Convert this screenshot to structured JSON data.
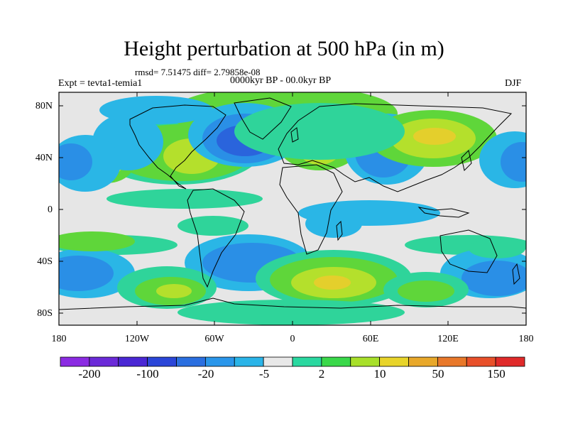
{
  "title": "Height perturbation at 500 hPa (in m)",
  "stats_line": "rmsd= 7.51475 diff= 2.79858e-08",
  "left_label": "Expt = tevta1-temia1",
  "center_label": "0000kyr BP - 00.0kyr BP",
  "right_label": "DJF",
  "y_ticks": [
    "80N",
    "40N",
    "0",
    "40S",
    "80S"
  ],
  "x_ticks": [
    "180",
    "120W",
    "60W",
    "0",
    "60E",
    "120E",
    "180"
  ],
  "colorbar": {
    "colors": [
      "#8b2be2",
      "#6b2ad8",
      "#4a27d4",
      "#2b46d8",
      "#2a6fe0",
      "#2a96ea",
      "#2ab4e8",
      "#e8e8e8",
      "#2ad8a0",
      "#3ad84a",
      "#a8e02a",
      "#e8d42a",
      "#e8a82a",
      "#e8782a",
      "#e8502a",
      "#e02a2a"
    ],
    "labels": [
      "-200",
      "-100",
      "-20",
      "-5",
      "2",
      "10",
      "50",
      "150"
    ]
  },
  "map_colors": {
    "neutral": "#e6e6e6",
    "pos_low": "#2fd49a",
    "pos_mid": "#5fd63a",
    "pos_high": "#b4e02c",
    "pos_top": "#e4cf2c",
    "neg_low": "#2ab6e6",
    "neg_mid": "#2a8fe6",
    "neg_high": "#2a64dc",
    "neg_top": "#2a44d0"
  }
}
